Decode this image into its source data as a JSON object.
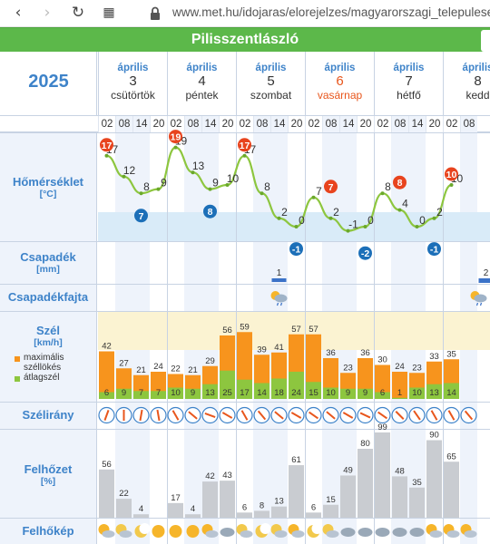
{
  "browser": {
    "back_glyph": "‹",
    "forward_glyph": "›",
    "reload_glyph": "↻",
    "grid_glyph": "▦",
    "url": "www.met.hu/idojaras/elorejelzes/magyarorszagi_telepulesek/"
  },
  "location": "Pilisszentlászló",
  "year": "2025",
  "days": [
    {
      "month": "április",
      "num": "3",
      "name": "csütörtök",
      "sunday": false
    },
    {
      "month": "április",
      "num": "4",
      "name": "péntek",
      "sunday": false
    },
    {
      "month": "április",
      "num": "5",
      "name": "szombat",
      "sunday": false
    },
    {
      "month": "április",
      "num": "6",
      "name": "vasárnap",
      "sunday": true
    },
    {
      "month": "április",
      "num": "7",
      "name": "hétfő",
      "sunday": false
    },
    {
      "month": "április",
      "num": "8",
      "name": "kedd",
      "sunday": false
    }
  ],
  "hours": [
    "02",
    "08",
    "14",
    "20",
    "02",
    "08",
    "14",
    "20",
    "02",
    "08",
    "14",
    "20",
    "02",
    "08",
    "14",
    "20",
    "02",
    "08",
    "14",
    "20",
    "02",
    "08"
  ],
  "labels": {
    "temp": {
      "main": "Hőmérséklet",
      "unit": "[°C]"
    },
    "precip": {
      "main": "Csapadék",
      "unit": "[mm]"
    },
    "precip_type": {
      "main": "Csapadékfajta"
    },
    "wind": {
      "main": "Szél",
      "unit": "[km/h]",
      "legend_gust_1": "maximális",
      "legend_gust_2": "széllökés",
      "legend_avg": "átlagszél"
    },
    "wind_dir": {
      "main": "Szélirány"
    },
    "cloud": {
      "main": "Felhőzet",
      "unit": "[%]"
    },
    "sky": {
      "main": "Felhőkép"
    }
  },
  "colors": {
    "accent": "#3e83c9",
    "header_green": "#5cb84a",
    "max_marker": "#e8441e",
    "min_marker": "#1c6fb8",
    "temp_line": "#8dc63f",
    "gust": "#f7941d",
    "avg_wind": "#8dc63f",
    "cloud_bar": "#c9ccd1",
    "precip_bar": "#3b72c8"
  },
  "temperature": {
    "values": [
      "17",
      "12",
      "8",
      "9",
      "19",
      "13",
      "9",
      "10",
      "17",
      "8",
      "2",
      "0",
      "7",
      "2",
      "-1",
      "0",
      "8",
      "4",
      "0",
      "2",
      "10"
    ],
    "max_markers": [
      "17",
      "19",
      "17",
      "7",
      "8",
      "10"
    ],
    "min_markers": [
      "7",
      "8",
      "-1",
      "-2",
      "-1"
    ]
  },
  "precipitation": {
    "labels": [
      "1",
      "2"
    ],
    "amounts": [
      1,
      2
    ]
  },
  "wind": {
    "gusts": [
      "42",
      "27",
      "21",
      "24",
      "22",
      "21",
      "29",
      "56",
      "59",
      "39",
      "41",
      "57",
      "57",
      "36",
      "23",
      "36",
      "30",
      "24",
      "23",
      "33",
      "35"
    ],
    "averages": [
      "6",
      "9",
      "7",
      "7",
      "10",
      "9",
      "13",
      "25",
      "17",
      "14",
      "18",
      "24",
      "15",
      "10",
      "9",
      "9",
      "6",
      "1",
      "10",
      "13",
      "14"
    ]
  },
  "clouds": {
    "values": [
      "56",
      "22",
      "4",
      "",
      "17",
      "4",
      "42",
      "43",
      "6",
      "8",
      "13",
      "61",
      "6",
      "15",
      "49",
      "80",
      "99",
      "48",
      "35",
      "90",
      "65"
    ]
  },
  "sky_icons": [
    "partly-cloudy",
    "partly-cloudy-night",
    "moon",
    "sun",
    "sun",
    "sun",
    "partly-cloudy",
    "cloudy",
    "partly-cloudy-night",
    "moon",
    "partly-cloudy-night",
    "partly-cloudy",
    "moon",
    "partly-cloudy-night",
    "cloudy",
    "cloudy",
    "cloudy",
    "cloudy",
    "cloudy",
    "partly-cloudy",
    "partly-cloudy",
    "partly-cloudy"
  ]
}
